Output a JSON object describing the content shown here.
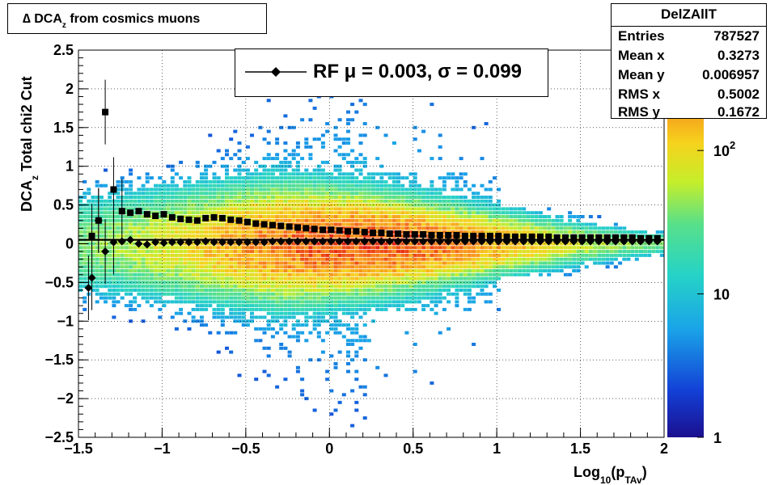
{
  "title": {
    "prefix": "∆ DCA",
    "sub": "z",
    "suffix": " from cosmics muons"
  },
  "stats": {
    "name": "DelZAllT",
    "rows": [
      {
        "label": "Entries",
        "value": "787527"
      },
      {
        "label": "Mean x",
        "value": "0.3273"
      },
      {
        "label": "Mean y",
        "value": "0.006957"
      },
      {
        "label": "RMS x",
        "value": "0.5002"
      },
      {
        "label": "RMS y",
        "value": "0.1672"
      }
    ]
  },
  "legend": {
    "text": "RF μ =  0.003, σ =   0.099"
  },
  "colors": {
    "frame": "#000000",
    "background": "#ffffff"
  },
  "chart_data": {
    "type": "heatmap",
    "title": "∆ DCA_z from cosmics muons",
    "xlabel": "Log10(pTAv)",
    "ylabel": "DCA_z  Total chi2 Cut",
    "xlim": [
      -1.5,
      2
    ],
    "ylim": [
      -2.5,
      2.5
    ],
    "x_ticks": [
      "−1.5",
      "−1",
      "−0.5",
      "0",
      "0.5",
      "1",
      "1.5",
      "2"
    ],
    "x_tick_values": [
      -1.5,
      -1,
      -0.5,
      0,
      0.5,
      1,
      1.5,
      2
    ],
    "y_ticks": [
      "2.5",
      "2",
      "1.5",
      "1",
      "0.5",
      "0",
      "−0.5",
      "−1",
      "−1.5",
      "−2",
      "−2.5"
    ],
    "y_tick_values": [
      2.5,
      2,
      1.5,
      1,
      0.5,
      0,
      -0.5,
      -1,
      -1.5,
      -2,
      -2.5
    ],
    "grid": true,
    "colorbar": {
      "scale": "log",
      "labels": [
        "1",
        "10",
        "10^2"
      ],
      "values": [
        1,
        10,
        100
      ]
    },
    "series": [
      {
        "name": "RF",
        "marker": "diamond",
        "x": [
          -1.44,
          -1.42,
          -1.38,
          -1.34,
          -1.29,
          -1.24,
          -1.19,
          -1.14,
          -1.09,
          -1.04,
          -0.99,
          -0.94,
          -0.89,
          -0.84,
          -0.79,
          -0.74,
          -0.69,
          -0.64,
          -0.59,
          -0.54,
          -0.49,
          -0.44,
          -0.39,
          -0.34,
          -0.29,
          -0.24,
          -0.19,
          -0.14,
          -0.09,
          -0.04,
          0.01,
          0.06,
          0.11,
          0.16,
          0.21,
          0.26,
          0.31,
          0.36,
          0.41,
          0.46,
          0.51,
          0.56,
          0.61,
          0.66,
          0.71,
          0.76,
          0.81,
          0.86,
          0.91,
          0.96,
          1.01,
          1.06,
          1.11,
          1.16,
          1.21,
          1.26,
          1.31,
          1.36,
          1.41,
          1.46,
          1.51,
          1.56,
          1.61,
          1.66,
          1.71,
          1.76,
          1.81,
          1.86,
          1.91,
          1.96
        ],
        "y": [
          -0.57,
          -0.44,
          0.3,
          -0.1,
          0.02,
          0.03,
          0.05,
          0.0,
          -0.01,
          0.02,
          0.01,
          0.02,
          0.02,
          0.02,
          0.02,
          0.03,
          0.02,
          0.02,
          0.02,
          0.02,
          0.02,
          0.02,
          0.02,
          0.03,
          0.03,
          0.03,
          0.03,
          0.03,
          0.03,
          0.03,
          0.03,
          0.03,
          0.03,
          0.03,
          0.03,
          0.03,
          0.03,
          0.03,
          0.03,
          0.03,
          0.03,
          0.03,
          0.03,
          0.03,
          0.03,
          0.03,
          0.03,
          0.03,
          0.03,
          0.03,
          0.03,
          0.03,
          0.03,
          0.03,
          0.03,
          0.03,
          0.03,
          0.03,
          0.03,
          0.03,
          0.03,
          0.03,
          0.03,
          0.03,
          0.03,
          0.03,
          0.03,
          0.03,
          0.03,
          0.03
        ]
      },
      {
        "name": "",
        "marker": "square",
        "x": [
          -1.42,
          -1.38,
          -1.34,
          -1.29,
          -1.24,
          -1.19,
          -1.14,
          -1.09,
          -1.04,
          -0.99,
          -0.94,
          -0.89,
          -0.84,
          -0.79,
          -0.74,
          -0.69,
          -0.64,
          -0.59,
          -0.54,
          -0.49,
          -0.44,
          -0.39,
          -0.34,
          -0.29,
          -0.24,
          -0.19,
          -0.14,
          -0.09,
          -0.04,
          0.01,
          0.06,
          0.11,
          0.16,
          0.21,
          0.26,
          0.31,
          0.36,
          0.41,
          0.46,
          0.51,
          0.56,
          0.61,
          0.66,
          0.71,
          0.76,
          0.81,
          0.86,
          0.91,
          0.96,
          1.01,
          1.06,
          1.11,
          1.16,
          1.21,
          1.26,
          1.31,
          1.36,
          1.41,
          1.46,
          1.51,
          1.56,
          1.61,
          1.66,
          1.71,
          1.76,
          1.81,
          1.86,
          1.91,
          1.96
        ],
        "y": [
          0.1,
          0.3,
          1.7,
          0.7,
          0.42,
          0.4,
          0.42,
          0.38,
          0.36,
          0.38,
          0.34,
          0.32,
          0.31,
          0.3,
          0.33,
          0.34,
          0.33,
          0.31,
          0.3,
          0.28,
          0.26,
          0.25,
          0.24,
          0.23,
          0.22,
          0.21,
          0.2,
          0.19,
          0.18,
          0.18,
          0.17,
          0.16,
          0.16,
          0.15,
          0.14,
          0.14,
          0.13,
          0.13,
          0.12,
          0.12,
          0.12,
          0.11,
          0.11,
          0.11,
          0.11,
          0.1,
          0.1,
          0.1,
          0.1,
          0.1,
          0.09,
          0.09,
          0.09,
          0.09,
          0.09,
          0.09,
          0.08,
          0.08,
          0.08,
          0.08,
          0.08,
          0.08,
          0.08,
          0.08,
          0.08,
          0.08,
          0.07,
          0.07,
          0.07
        ]
      }
    ]
  }
}
